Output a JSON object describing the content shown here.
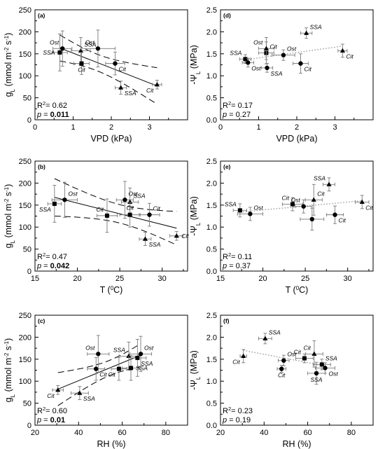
{
  "chart_data": [
    {
      "id": "a",
      "panel_label": "(a)",
      "type": "scatter",
      "xlabel": "VPD (kPa)",
      "ylabel": "gL (mmol m-2 s-1)",
      "xlim": [
        0,
        4
      ],
      "ylim": [
        0,
        250
      ],
      "xticks": [
        0,
        1,
        2,
        3
      ],
      "yticks": [
        0,
        50,
        100,
        150,
        200,
        250
      ],
      "fit": "solid_with_ci",
      "stats": {
        "r2": "R2= 0.62",
        "p": "p = 0.011",
        "p_bold": true
      },
      "points": [
        {
          "x": 0.65,
          "y": 153,
          "xerr": 0.2,
          "yerr": 42,
          "marker": "square",
          "label": "SSA",
          "lpos": "l"
        },
        {
          "x": 0.72,
          "y": 162,
          "xerr": 0.25,
          "yerr": 40,
          "marker": "circle",
          "label": "Ost",
          "lpos": "tl"
        },
        {
          "x": 1.2,
          "y": 157,
          "xerr": 0.25,
          "yerr": 30,
          "marker": "triangle",
          "label": "SSA",
          "lpos": "tr"
        },
        {
          "x": 1.22,
          "y": 128,
          "xerr": 0.2,
          "yerr": 25,
          "marker": "square",
          "label": "Cit",
          "lpos": "b"
        },
        {
          "x": 1.65,
          "y": 162,
          "xerr": 0.45,
          "yerr": 42,
          "marker": "circle",
          "label": "Ost",
          "lpos": "tl"
        },
        {
          "x": 2.1,
          "y": 128,
          "xerr": 0.25,
          "yerr": 26,
          "marker": "circle",
          "label": "Cit",
          "lpos": "br"
        },
        {
          "x": 2.25,
          "y": 73,
          "xerr": 0.15,
          "yerr": 15,
          "marker": "triangle",
          "label": "SSA",
          "lpos": "br"
        },
        {
          "x": 3.2,
          "y": 80,
          "xerr": 0.12,
          "yerr": 10,
          "marker": "triangle",
          "label": "Cit",
          "lpos": "bl"
        }
      ]
    },
    {
      "id": "d",
      "panel_label": "(d)",
      "type": "scatter",
      "xlabel": "VPD (kPa)",
      "ylabel": "-ΨL (MPa)",
      "xlim": [
        0,
        4
      ],
      "ylim": [
        0,
        2.5
      ],
      "xticks": [
        0,
        1,
        2,
        3
      ],
      "yticks": [
        0.0,
        0.5,
        1.0,
        1.5,
        2.0,
        2.5
      ],
      "fit": "dotted",
      "stats": {
        "r2": "R2= 0.17",
        "p": "p = 0.27",
        "p_bold": false
      },
      "points": [
        {
          "x": 0.65,
          "y": 1.38,
          "xerr": 0.15,
          "yerr": 0.1,
          "marker": "square",
          "label": "SSA",
          "lpos": "tl"
        },
        {
          "x": 0.72,
          "y": 1.3,
          "xerr": 0.15,
          "yerr": 0.1,
          "marker": "circle",
          "label": "Ost",
          "lpos": "br"
        },
        {
          "x": 1.2,
          "y": 1.52,
          "xerr": 0.2,
          "yerr": 0.25,
          "marker": "square",
          "label": "Cit",
          "lpos": "tr"
        },
        {
          "x": 1.2,
          "y": 1.62,
          "xerr": 0.2,
          "yerr": 0.25,
          "marker": "triangle",
          "label": "Ost",
          "lpos": "tl"
        },
        {
          "x": 1.22,
          "y": 1.18,
          "xerr": 0.15,
          "yerr": 0.1,
          "marker": "circle",
          "label": "SSA",
          "lpos": "br"
        },
        {
          "x": 1.65,
          "y": 1.47,
          "xerr": 0.3,
          "yerr": 0.12,
          "marker": "circle",
          "label": "Ost",
          "lpos": "tr"
        },
        {
          "x": 2.1,
          "y": 1.28,
          "xerr": 0.2,
          "yerr": 0.22,
          "marker": "circle",
          "label": "Cit",
          "lpos": "br"
        },
        {
          "x": 2.25,
          "y": 1.97,
          "xerr": 0.15,
          "yerr": 0.12,
          "marker": "triangle",
          "label": "SSA",
          "lpos": "tr"
        },
        {
          "x": 3.2,
          "y": 1.57,
          "xerr": 0.12,
          "yerr": 0.15,
          "marker": "triangle",
          "label": "Cit",
          "lpos": "br"
        }
      ]
    },
    {
      "id": "b",
      "panel_label": "(b)",
      "type": "scatter",
      "xlabel": "T (0C)",
      "ylabel": "gL (mmol m-2 s-1)",
      "xlim": [
        15,
        33
      ],
      "ylim": [
        0,
        250
      ],
      "xticks": [
        15,
        20,
        25,
        30
      ],
      "yticks": [
        0,
        50,
        100,
        150,
        200,
        250
      ],
      "fit": "solid_with_ci",
      "stats": {
        "r2": "R2= 0.47",
        "p": "p = 0.042",
        "p_bold": true
      },
      "points": [
        {
          "x": 17.3,
          "y": 153,
          "xerr": 0.8,
          "yerr": 42,
          "marker": "square",
          "label": "SSA",
          "lpos": "bl"
        },
        {
          "x": 18.5,
          "y": 162,
          "xerr": 1.5,
          "yerr": 40,
          "marker": "circle",
          "label": "Ost",
          "lpos": "tr"
        },
        {
          "x": 23.5,
          "y": 126,
          "xerr": 1.2,
          "yerr": 38,
          "marker": "square",
          "label": "Cit",
          "lpos": "tl"
        },
        {
          "x": 25.6,
          "y": 162,
          "xerr": 1.0,
          "yerr": 42,
          "marker": "circle",
          "label": "Ost",
          "lpos": "tr"
        },
        {
          "x": 26.2,
          "y": 157,
          "xerr": 1.0,
          "yerr": 32,
          "marker": "triangle",
          "label": "SSA",
          "lpos": "tr"
        },
        {
          "x": 26.2,
          "y": 128,
          "xerr": 1.2,
          "yerr": 28,
          "marker": "square",
          "label": "Cit",
          "lpos": "t"
        },
        {
          "x": 28.5,
          "y": 128,
          "xerr": 1.2,
          "yerr": 26,
          "marker": "circle",
          "label": "Cit",
          "lpos": "tr"
        },
        {
          "x": 28.0,
          "y": 73,
          "xerr": 0.7,
          "yerr": 15,
          "marker": "triangle",
          "label": "SSA",
          "lpos": "br"
        },
        {
          "x": 31.7,
          "y": 80,
          "xerr": 0.8,
          "yerr": 10,
          "marker": "triangle",
          "label": "Cit",
          "lpos": "r"
        }
      ]
    },
    {
      "id": "e",
      "panel_label": "(e)",
      "type": "scatter",
      "xlabel": "T (0C)",
      "ylabel": "-ΨL (MPa)",
      "xlim": [
        15,
        33
      ],
      "ylim": [
        0,
        2.5
      ],
      "xticks": [
        15,
        20,
        25,
        30
      ],
      "yticks": [
        0.0,
        0.5,
        1.0,
        1.5,
        2.0,
        2.5
      ],
      "fit": "dotted",
      "stats": {
        "r2": "R2= 0.11",
        "p": "p = 0.37",
        "p_bold": false
      },
      "points": [
        {
          "x": 17.3,
          "y": 1.38,
          "xerr": 0.8,
          "yerr": 0.15,
          "marker": "square",
          "label": "SSA",
          "lpos": "tl"
        },
        {
          "x": 18.5,
          "y": 1.3,
          "xerr": 1.5,
          "yerr": 0.15,
          "marker": "circle",
          "label": "Ost",
          "lpos": "tr"
        },
        {
          "x": 23.5,
          "y": 1.52,
          "xerr": 1.2,
          "yerr": 0.15,
          "marker": "square",
          "label": "Cit",
          "lpos": "tl"
        },
        {
          "x": 24.8,
          "y": 1.47,
          "xerr": 1.0,
          "yerr": 0.15,
          "marker": "circle",
          "label": "Ost",
          "lpos": "tl"
        },
        {
          "x": 26.0,
          "y": 1.62,
          "xerr": 1.0,
          "yerr": 0.35,
          "marker": "triangle",
          "label": "Cit",
          "lpos": "tr"
        },
        {
          "x": 25.8,
          "y": 1.18,
          "xerr": 1.4,
          "yerr": 0.25,
          "marker": "circle",
          "label": "",
          "lpos": "t"
        },
        {
          "x": 28.5,
          "y": 1.28,
          "xerr": 1.0,
          "yerr": 0.2,
          "marker": "circle",
          "label": "Cit",
          "lpos": "br"
        },
        {
          "x": 27.8,
          "y": 1.97,
          "xerr": 0.7,
          "yerr": 0.15,
          "marker": "triangle",
          "label": "SSA",
          "lpos": "tl"
        },
        {
          "x": 31.7,
          "y": 1.57,
          "xerr": 0.8,
          "yerr": 0.15,
          "marker": "triangle",
          "label": "Cit",
          "lpos": "br"
        }
      ]
    },
    {
      "id": "c",
      "panel_label": "(c)",
      "type": "scatter",
      "xlabel": "RH (%)",
      "ylabel": "gL (mmol m-2 s-1)",
      "xlim": [
        20,
        90
      ],
      "ylim": [
        0,
        250
      ],
      "xticks": [
        20,
        40,
        60,
        80
      ],
      "yticks": [
        0,
        50,
        100,
        150,
        200,
        250
      ],
      "fit": "solid_with_ci",
      "stats": {
        "r2": "R2= 0.60",
        "p": "p = 0.01",
        "p_bold": true
      },
      "points": [
        {
          "x": 30.5,
          "y": 80,
          "xerr": 2.5,
          "yerr": 10,
          "marker": "triangle",
          "label": "Cit",
          "lpos": "bl"
        },
        {
          "x": 40.5,
          "y": 73,
          "xerr": 4.0,
          "yerr": 15,
          "marker": "triangle",
          "label": "SSA",
          "lpos": "br"
        },
        {
          "x": 49.0,
          "y": 162,
          "xerr": 5.0,
          "yerr": 42,
          "marker": "circle",
          "label": "Ost",
          "lpos": "tl"
        },
        {
          "x": 48.0,
          "y": 128,
          "xerr": 4.0,
          "yerr": 26,
          "marker": "circle",
          "label": "Cit",
          "lpos": "br"
        },
        {
          "x": 58.5,
          "y": 128,
          "xerr": 3.5,
          "yerr": 26,
          "marker": "square",
          "label": "Cit",
          "lpos": "bl"
        },
        {
          "x": 63.0,
          "y": 157,
          "xerr": 4.5,
          "yerr": 32,
          "marker": "triangle",
          "label": "SSA",
          "lpos": "tl"
        },
        {
          "x": 64.0,
          "y": 130,
          "xerr": 4.0,
          "yerr": 28,
          "marker": "square",
          "label": "SSA",
          "lpos": "r"
        },
        {
          "x": 67.0,
          "y": 153,
          "xerr": 4.0,
          "yerr": 42,
          "marker": "square",
          "label": "SSA",
          "lpos": "br"
        },
        {
          "x": 68.5,
          "y": 162,
          "xerr": 5.0,
          "yerr": 40,
          "marker": "circle",
          "label": "Ost",
          "lpos": "tr"
        }
      ]
    },
    {
      "id": "f",
      "panel_label": "(f)",
      "type": "scatter",
      "xlabel": "RH (%)",
      "ylabel": "-ΨL (MPa)",
      "xlim": [
        20,
        90
      ],
      "ylim": [
        0,
        2.5
      ],
      "xticks": [
        20,
        40,
        60,
        80
      ],
      "yticks": [
        0.0,
        0.5,
        1.0,
        1.5,
        2.0,
        2.5
      ],
      "fit": "dotted",
      "stats": {
        "r2": "R2= 0.23",
        "p": "p = 0.19",
        "p_bold": false
      },
      "points": [
        {
          "x": 30.5,
          "y": 1.57,
          "xerr": 1.5,
          "yerr": 0.15,
          "marker": "triangle",
          "label": "Cit",
          "lpos": "bl"
        },
        {
          "x": 40.5,
          "y": 1.97,
          "xerr": 3.0,
          "yerr": 0.12,
          "marker": "triangle",
          "label": "SSA",
          "lpos": "tr"
        },
        {
          "x": 49.0,
          "y": 1.47,
          "xerr": 2.5,
          "yerr": 0.12,
          "marker": "circle",
          "label": "Ost",
          "lpos": "tr"
        },
        {
          "x": 48.0,
          "y": 1.28,
          "xerr": 2.0,
          "yerr": 0.08,
          "marker": "circle",
          "label": "Cit",
          "lpos": "b"
        },
        {
          "x": 58.5,
          "y": 1.52,
          "xerr": 4.0,
          "yerr": 0.1,
          "marker": "square",
          "label": "Cit",
          "lpos": "tl"
        },
        {
          "x": 63.0,
          "y": 1.62,
          "xerr": 4.0,
          "yerr": 0.3,
          "marker": "triangle",
          "label": "Cit",
          "lpos": "tl"
        },
        {
          "x": 64.0,
          "y": 1.18,
          "xerr": 4.0,
          "yerr": 0.25,
          "marker": "circle",
          "label": "SSA",
          "lpos": "b"
        },
        {
          "x": 66.5,
          "y": 1.38,
          "xerr": 4.0,
          "yerr": 0.12,
          "marker": "square",
          "label": "SSA",
          "lpos": "tr"
        },
        {
          "x": 68.0,
          "y": 1.3,
          "xerr": 4.5,
          "yerr": 0.12,
          "marker": "circle",
          "label": "Ost",
          "lpos": "br"
        }
      ]
    }
  ]
}
